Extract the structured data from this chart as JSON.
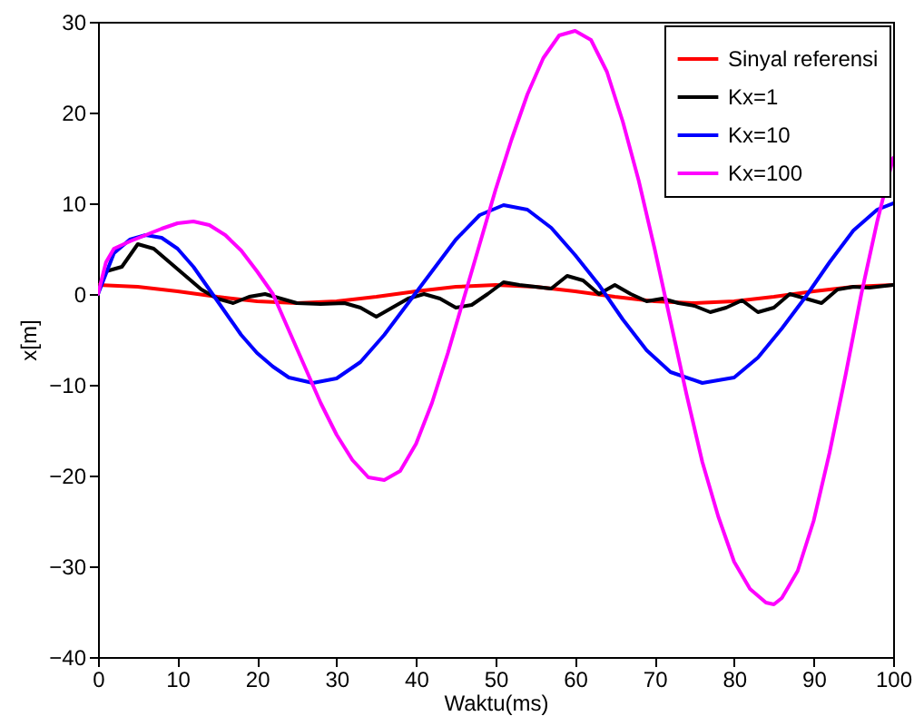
{
  "chart_data": {
    "type": "line",
    "xlabel": "Waktu(ms)",
    "ylabel": "x[m]",
    "xlim": [
      0,
      100
    ],
    "ylim": [
      -40,
      30
    ],
    "xticks": [
      0,
      10,
      20,
      30,
      40,
      50,
      60,
      70,
      80,
      90,
      100
    ],
    "yticks": [
      -40,
      -30,
      -20,
      -10,
      0,
      10,
      20,
      30
    ],
    "grid": false,
    "legend": "top right",
    "series": [
      {
        "name": "Sinyal referensi",
        "color": "#ff0000",
        "x": [
          0,
          5,
          10,
          15,
          20,
          25,
          30,
          35,
          40,
          45,
          50,
          55,
          60,
          65,
          70,
          75,
          80,
          85,
          90,
          95,
          100
        ],
        "values": [
          1,
          0.8,
          0.3,
          -0.3,
          -0.8,
          -1,
          -0.8,
          -0.3,
          0.3,
          0.8,
          1,
          0.8,
          0.3,
          -0.3,
          -0.8,
          -1,
          -0.8,
          -0.3,
          0.3,
          0.8,
          1
        ]
      },
      {
        "name": "Kx=1",
        "color": "#000000",
        "x": [
          0,
          1,
          3,
          5,
          7,
          9,
          11,
          13,
          15,
          17,
          19,
          21,
          23,
          25,
          28,
          31,
          33,
          35,
          37,
          39,
          41,
          43,
          45,
          47,
          49,
          51,
          53,
          55,
          57,
          59,
          61,
          63,
          65,
          67,
          69,
          71,
          73,
          75,
          77,
          79,
          81,
          83,
          85,
          87,
          89,
          91,
          93,
          95,
          97,
          100
        ],
        "values": [
          0.5,
          2.5,
          3,
          5.5,
          5,
          3.5,
          2,
          0.5,
          -0.5,
          -1,
          -0.3,
          0,
          -0.5,
          -1,
          -1.1,
          -1,
          -1.5,
          -2.5,
          -1.5,
          -0.5,
          0,
          -0.5,
          -1.5,
          -1.2,
          0,
          1.3,
          1,
          0.8,
          0.6,
          2,
          1.5,
          0,
          1,
          0,
          -0.8,
          -0.5,
          -1,
          -1.3,
          -2,
          -1.5,
          -0.7,
          -2,
          -1.5,
          0,
          -0.5,
          -1,
          0.5,
          0.8,
          0.7,
          1
        ]
      },
      {
        "name": "Kx=10",
        "color": "#0000ff",
        "x": [
          0,
          2,
          4,
          6,
          8,
          10,
          12,
          14,
          16,
          18,
          20,
          22,
          24,
          27,
          30,
          33,
          36,
          39,
          42,
          45,
          48,
          51,
          54,
          57,
          60,
          63,
          66,
          69,
          72,
          76,
          80,
          83,
          86,
          89,
          92,
          95,
          98,
          100
        ],
        "values": [
          0,
          4.5,
          6,
          6.5,
          6.2,
          5,
          3,
          0.5,
          -2,
          -4.5,
          -6.5,
          -8,
          -9.2,
          -9.8,
          -9.3,
          -7.5,
          -4.5,
          -1,
          2.5,
          6,
          8.7,
          9.8,
          9.3,
          7.3,
          4.3,
          1,
          -2.8,
          -6.2,
          -8.6,
          -9.8,
          -9.2,
          -7,
          -3.8,
          -0.3,
          3.5,
          7,
          9.3,
          10
        ]
      },
      {
        "name": "Kx=100",
        "color": "#ff00ff",
        "x": [
          0,
          1,
          2,
          4,
          6,
          8,
          10,
          12,
          14,
          16,
          18,
          20,
          22,
          24,
          26,
          28,
          30,
          32,
          34,
          36,
          38,
          40,
          42,
          44,
          46,
          48,
          50,
          52,
          54,
          56,
          58,
          60,
          62,
          64,
          66,
          68,
          70,
          72,
          74,
          76,
          78,
          80,
          82,
          84,
          85,
          86,
          88,
          90,
          92,
          94,
          96,
          98,
          100
        ],
        "values": [
          0,
          3.5,
          5,
          5.8,
          6.5,
          7.2,
          7.8,
          8,
          7.6,
          6.5,
          4.8,
          2.5,
          0,
          -4,
          -8,
          -12,
          -15.5,
          -18.3,
          -20.2,
          -20.5,
          -19.5,
          -16.5,
          -12,
          -6.5,
          -0.5,
          5.5,
          11.5,
          17,
          22,
          26,
          28.5,
          29,
          28,
          24.5,
          19,
          12.5,
          5,
          -3,
          -11,
          -18.5,
          -24.5,
          -29.5,
          -32.5,
          -34,
          -34.2,
          -33.5,
          -30.5,
          -25,
          -17.5,
          -9,
          0,
          8,
          15
        ]
      }
    ]
  }
}
